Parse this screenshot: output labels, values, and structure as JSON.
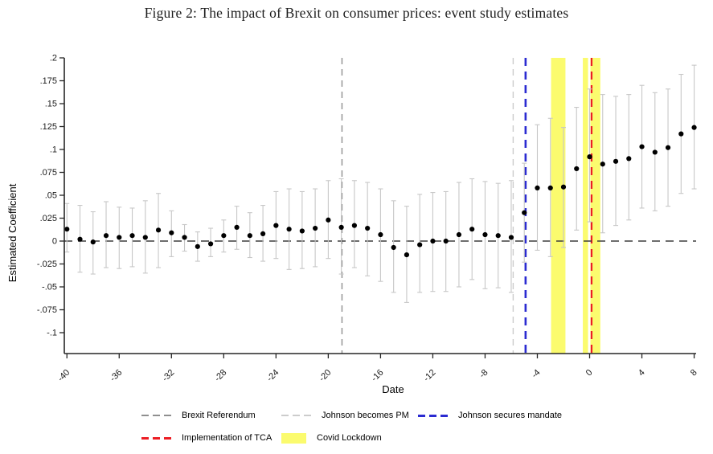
{
  "figure": {
    "title": "Figure 2: The impact of Brexit on consumer prices: event study estimates"
  },
  "chart_data": {
    "type": "scatter",
    "subtype": "event-study with 95% confidence intervals",
    "title": "Figure 2: The impact of Brexit on consumer prices: event study estimates",
    "xlabel": "Date",
    "ylabel": "Estimated Coefficient",
    "xlim": [
      -40.2,
      8.15
    ],
    "ylim": [
      -0.1228,
      0.2
    ],
    "grid": false,
    "x_ticks": [
      -40,
      -36,
      -32,
      -28,
      -24,
      -20,
      -16,
      -12,
      -8,
      -4,
      0,
      4,
      8
    ],
    "x_tick_labels": [
      "-40",
      "-36",
      "-32",
      "-28",
      "-24",
      "-20",
      "-16",
      "-12",
      "-8",
      "-4",
      "0",
      "4",
      "8"
    ],
    "y_ticks": [
      0.2,
      0.175,
      0.15,
      0.125,
      0.1,
      0.075,
      0.05,
      0.025,
      0,
      -0.025,
      -0.05,
      -0.075,
      -0.1
    ],
    "y_tick_labels": [
      ".2",
      ".175",
      ".15",
      ".125",
      ".1",
      ".075",
      ".05",
      ".025",
      "0",
      "-.025",
      "-.05",
      "-.075",
      "-.1"
    ],
    "x": [
      -40,
      -39,
      -38,
      -37,
      -36,
      -35,
      -34,
      -33,
      -32,
      -31,
      -30,
      -29,
      -28,
      -27,
      -26,
      -25,
      -24,
      -23,
      -22,
      -21,
      -20,
      -19,
      -18,
      -17,
      -16,
      -15,
      -14,
      -13,
      -12,
      -11,
      -10,
      -9,
      -8,
      -7,
      -6,
      -5,
      -4,
      -3,
      -2,
      -1,
      0,
      1,
      2,
      3,
      4,
      5,
      6,
      7,
      8
    ],
    "estimates": [
      0.013,
      0.002,
      -0.001,
      0.006,
      0.004,
      0.006,
      0.004,
      0.012,
      0.009,
      0.004,
      -0.006,
      -0.003,
      0.006,
      0.015,
      0.006,
      0.008,
      0.017,
      0.013,
      0.011,
      0.014,
      0.023,
      0.015,
      0.017,
      0.014,
      0.007,
      -0.007,
      -0.015,
      -0.004,
      0.0,
      0.0,
      0.007,
      0.013,
      0.007,
      0.006,
      0.004,
      0.031,
      0.058,
      0.058,
      0.059,
      0.079,
      0.092,
      0.084,
      0.087,
      0.09,
      0.103,
      0.097,
      0.102,
      0.117,
      0.124
    ],
    "ci_low": [
      -0.012,
      -0.034,
      -0.036,
      -0.029,
      -0.03,
      -0.028,
      -0.035,
      -0.029,
      -0.017,
      -0.011,
      -0.022,
      -0.017,
      -0.012,
      -0.009,
      -0.018,
      -0.022,
      -0.019,
      -0.031,
      -0.03,
      -0.028,
      -0.019,
      -0.036,
      -0.029,
      -0.038,
      -0.044,
      -0.056,
      -0.067,
      -0.056,
      -0.055,
      -0.055,
      -0.05,
      -0.042,
      -0.052,
      -0.051,
      -0.056,
      -0.023,
      -0.01,
      -0.017,
      -0.007,
      0.012,
      0.021,
      0.009,
      0.017,
      0.023,
      0.036,
      0.033,
      0.038,
      0.052,
      0.057
    ],
    "ci_high": [
      0.041,
      0.039,
      0.032,
      0.043,
      0.037,
      0.036,
      0.044,
      0.052,
      0.033,
      0.018,
      0.01,
      0.014,
      0.023,
      0.038,
      0.031,
      0.039,
      0.054,
      0.057,
      0.054,
      0.057,
      0.066,
      0.068,
      0.066,
      0.064,
      0.057,
      0.044,
      0.038,
      0.051,
      0.053,
      0.054,
      0.064,
      0.068,
      0.065,
      0.063,
      0.066,
      0.085,
      0.127,
      0.134,
      0.124,
      0.146,
      0.166,
      0.16,
      0.158,
      0.16,
      0.17,
      0.162,
      0.166,
      0.182,
      0.192
    ],
    "zero_line": {
      "value": 0,
      "color": "#3d3d3d"
    },
    "event_lines": [
      {
        "label": "Brexit Referendum",
        "x": -18.95,
        "color": "#8f8f8f",
        "width": 1.4,
        "dash": "8 6"
      },
      {
        "label": "Johnson becomes PM",
        "x": -5.85,
        "color": "#cccccc",
        "width": 1.4,
        "dash": "8 6"
      },
      {
        "label": "Johnson secures mandate",
        "x": -4.9,
        "color": "#2b2bd1",
        "width": 2.6,
        "dash": "10 7"
      },
      {
        "label": "Implementation of TCA",
        "x": 0.15,
        "color": "#ec1d24",
        "width": 2.2,
        "dash": "10 7"
      }
    ],
    "covid_bands": {
      "label": "Covid Lockdown",
      "color": "#fbfb6e",
      "ranges": [
        [
          -2.95,
          -1.85
        ],
        [
          -0.52,
          -0.12
        ],
        [
          0.06,
          0.82
        ]
      ]
    },
    "series_colors": {
      "dot": "#000000",
      "ci": "#c7c7c7",
      "axis": "#262626",
      "tick_text": "#1a1a1a"
    },
    "legend": [
      {
        "label": "Brexit Referendum",
        "key": "dash",
        "color": "#8f8f8f",
        "thickness": 2
      },
      {
        "label": "Johnson becomes PM",
        "key": "dash",
        "color": "#cccccc",
        "thickness": 2
      },
      {
        "label": "Johnson secures mandate",
        "key": "dash",
        "color": "#2b2bd1",
        "thickness": 3
      },
      {
        "label": "Implementation of TCA",
        "key": "dash",
        "color": "#ec1d24",
        "thickness": 3
      },
      {
        "label": "Covid Lockdown",
        "key": "band",
        "color": "#fbfb6e",
        "thickness": 13
      }
    ]
  }
}
